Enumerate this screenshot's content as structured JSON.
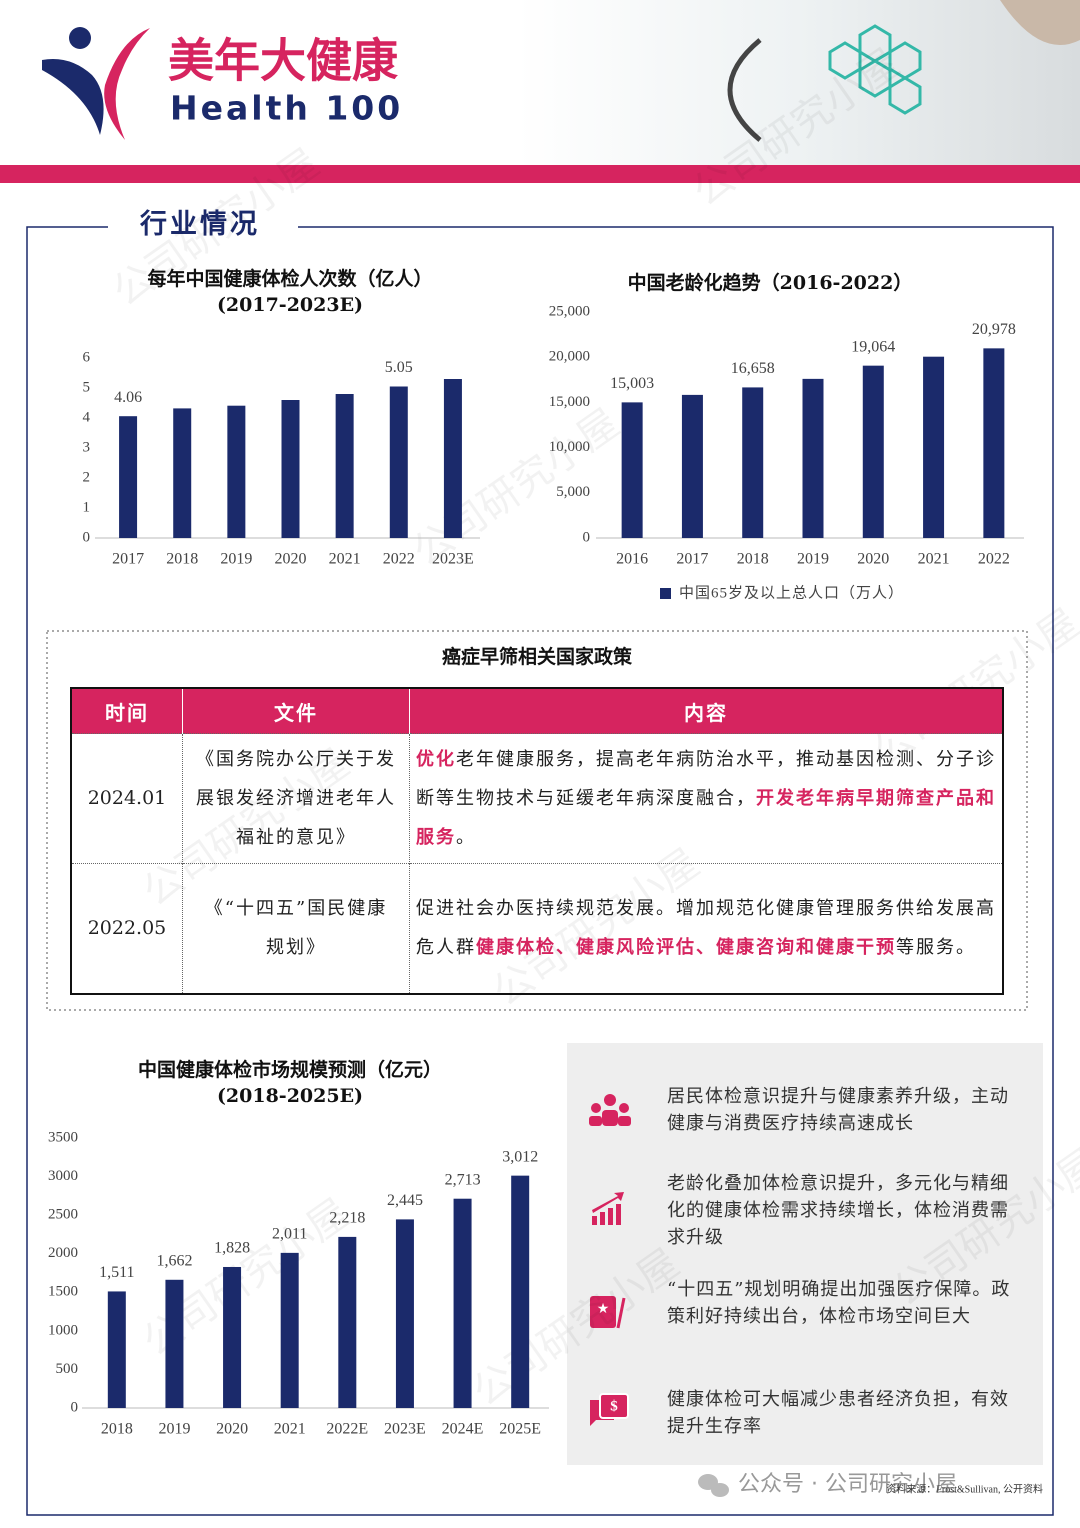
{
  "header": {
    "brand_cn": "美年大健康",
    "brand_en": "Health 100"
  },
  "section_title": "行业情况",
  "chart_data": [
    {
      "type": "bar",
      "title": "每年中国健康体检人次数（亿人）",
      "subtitle": "(2017-2023E)",
      "categories": [
        "2017",
        "2018",
        "2019",
        "2020",
        "2021",
        "2022",
        "2023E"
      ],
      "values": [
        4.06,
        4.32,
        4.41,
        4.6,
        4.8,
        5.05,
        5.3
      ],
      "value_labels": [
        "4.06",
        null,
        null,
        null,
        null,
        "5.05",
        null
      ],
      "color": "#1b2a6b",
      "ylim": [
        0,
        6
      ],
      "yticks": [
        0,
        1,
        2,
        3,
        4,
        5,
        6
      ]
    },
    {
      "type": "bar",
      "title": "中国老龄化趋势（2016-2022）",
      "categories": [
        "2016",
        "2017",
        "2018",
        "2019",
        "2020",
        "2021",
        "2022"
      ],
      "series": [
        {
          "name": "中国65岁及以上总人口（万人）",
          "color": "#1b2a6b",
          "values": [
            15003,
            15831,
            16658,
            17603,
            19064,
            20056,
            20978
          ],
          "value_labels": [
            "15,003",
            null,
            "16,658",
            null,
            "19,064",
            null,
            "20,978"
          ]
        }
      ],
      "ylim": [
        0,
        25000
      ],
      "yticks": [
        0,
        {
          "value": 5000,
          "label": "5,000"
        },
        {
          "value": 10000,
          "label": "10,000"
        },
        {
          "value": 15000,
          "label": "15,000"
        },
        {
          "value": 20000,
          "label": "20,000"
        },
        {
          "value": 25000,
          "label": "25,000"
        }
      ]
    },
    {
      "type": "bar",
      "title": "中国健康体检市场规模预测（亿元）",
      "subtitle": "(2018-2025E)",
      "categories": [
        "2018",
        "2019",
        "2020",
        "2021",
        "2022E",
        "2023E",
        "2024E",
        "2025E"
      ],
      "values": [
        1511,
        1662,
        1828,
        2011,
        2218,
        2445,
        2713,
        3012
      ],
      "value_labels": [
        "1,511",
        "1,662",
        "1,828",
        "2,011",
        "2,218",
        "2,445",
        "2,713",
        "3,012"
      ],
      "color": "#1b2a6b",
      "ylim": [
        0,
        3500
      ],
      "yticks": [
        0,
        500,
        1000,
        1500,
        2000,
        2500,
        3000,
        3500
      ]
    }
  ],
  "table": {
    "title": "癌症早筛相关国家政策",
    "headers": [
      "时间",
      "文件",
      "内容"
    ],
    "rows": [
      [
        "2024.01",
        "《国务院办公厅关于发展银发经济增进老年人福祉的意见》",
        [
          {
            "text": "优化",
            "highlight": true
          },
          {
            "text": "老年健康服务，提高老年病防治水平，推动基因检测、分子诊断等生物技术与延缓老年病深度融合，",
            "highlight": false
          },
          {
            "text": "开发老年病早期筛查产品和服务",
            "highlight": true
          },
          {
            "text": "。",
            "highlight": false
          }
        ]
      ],
      [
        "2022.05",
        "《“十四五”国民健康规划》",
        [
          {
            "text": "促进社会办医持续规范发展。增加规范化健康管理服务供给发展高危人群",
            "highlight": false
          },
          {
            "text": "健康体检、健康风险评估、健康咨询和健康干预",
            "highlight": true
          },
          {
            "text": "等服务。",
            "highlight": false
          }
        ]
      ]
    ]
  },
  "highlights": [
    "居民体检意识提升与健康素养升级，主动健康与消费医疗持续高速成长",
    "老龄化叠加体检意识提升，多元化与精细化的健康体检需求持续增长，体检消费需求升级",
    "“十四五”规划明确提出加强医疗保障。政策利好持续出台，体检市场空间巨大",
    "健康体检可大幅减少患者经济负担，有效提升生存率"
  ],
  "source": "资料来源：Frost&Sullivan, 公开资料",
  "footer": "公众号 · 公司研究小屋",
  "watermark": "公司研究小屋"
}
